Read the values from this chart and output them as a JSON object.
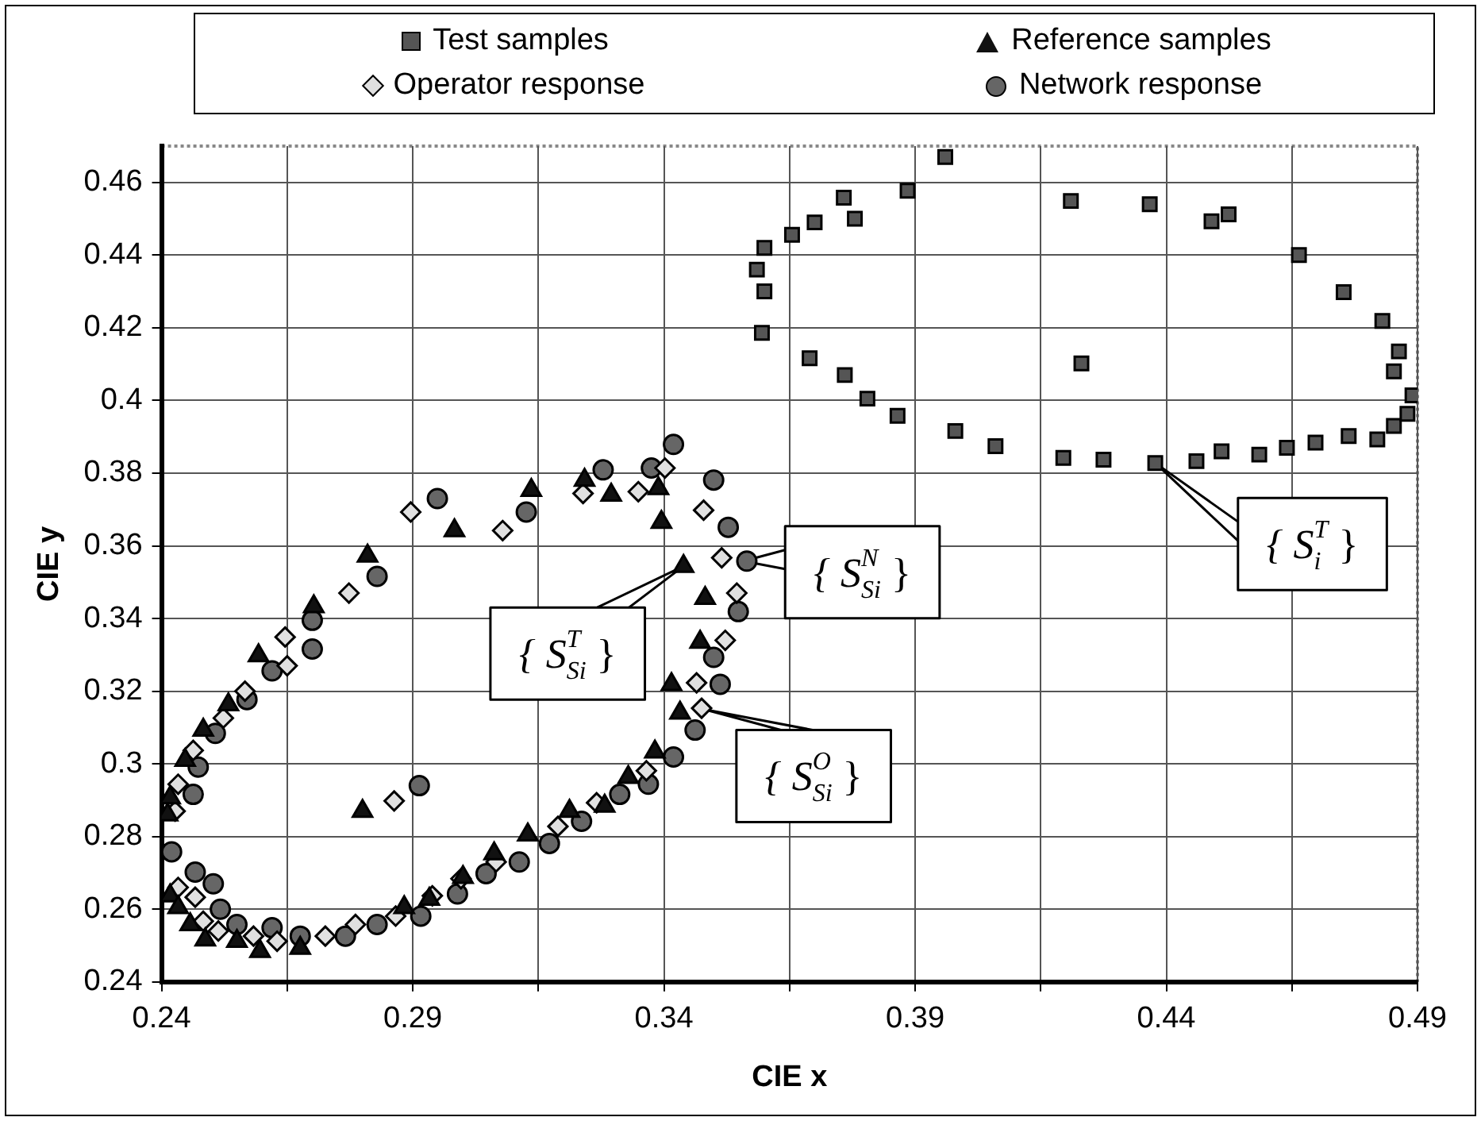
{
  "chart_data": {
    "type": "scatter",
    "xlabel": "CIE x",
    "ylabel": "CIE y",
    "xlim": [
      0.24,
      0.49
    ],
    "ylim": [
      0.24,
      0.47
    ],
    "xticks": [
      0.24,
      {
        "value": 0.265,
        "label": null
      },
      0.29,
      {
        "value": 0.315,
        "label": null
      },
      0.34,
      {
        "value": 0.365,
        "label": null
      },
      0.39,
      {
        "value": 0.415,
        "label": null
      },
      0.44,
      {
        "value": 0.465,
        "label": null
      },
      0.49
    ],
    "yticks": [
      0.24,
      0.26,
      0.28,
      0.3,
      0.32,
      0.34,
      0.36,
      0.38,
      0.4,
      0.42,
      0.44,
      0.46
    ],
    "grid": true,
    "legend": "top",
    "series": [
      {
        "name": "Test samples",
        "color": "#555555",
        "marker": "square",
        "x": [
          0.396,
          0.3885,
          0.3758,
          0.378,
          0.37,
          0.3655,
          0.36,
          0.3585,
          0.36,
          0.3595,
          0.369,
          0.376,
          0.3805,
          0.3865,
          0.398,
          0.406,
          0.4195,
          0.4275,
          0.4378,
          0.446,
          0.451,
          0.4585,
          0.464,
          0.4697,
          0.4763,
          0.482,
          0.4853,
          0.488,
          0.489,
          0.4853,
          0.4863,
          0.483,
          0.4753,
          0.4664,
          0.4524,
          0.449,
          0.4367,
          0.421,
          0.4231
        ],
        "values": [
          0.467,
          0.4577,
          0.4558,
          0.45,
          0.449,
          0.4456,
          0.442,
          0.436,
          0.43,
          0.4186,
          0.4116,
          0.407,
          0.4005,
          0.3958,
          0.3916,
          0.3874,
          0.3842,
          0.3837,
          0.3828,
          0.3833,
          0.386,
          0.3851,
          0.387,
          0.3884,
          0.3902,
          0.3893,
          0.393,
          0.3963,
          0.4014,
          0.408,
          0.4135,
          0.4219,
          0.4298,
          0.44,
          0.4512,
          0.4493,
          0.454,
          0.4549,
          0.4102
        ]
      },
      {
        "name": "Reference samples",
        "color": "#111111",
        "marker": "triangle",
        "x": [
          0.2412,
          0.2417,
          0.2447,
          0.2483,
          0.2533,
          0.2593,
          0.2703,
          0.281,
          0.2983,
          0.28,
          0.2417,
          0.2433,
          0.2457,
          0.2487,
          0.255,
          0.2596,
          0.2676,
          0.2883,
          0.2933,
          0.3,
          0.3136,
          0.3242,
          0.3295,
          0.3389,
          0.3395,
          0.3439,
          0.3482,
          0.3472,
          0.3415,
          0.3432,
          0.3382,
          0.3329,
          0.3282,
          0.3212,
          0.3129,
          0.3062
        ],
        "values": [
          0.286,
          0.2907,
          0.301,
          0.3093,
          0.3163,
          0.3298,
          0.3433,
          0.3572,
          0.3642,
          0.287,
          0.2637,
          0.2605,
          0.2558,
          0.2516,
          0.2512,
          0.2484,
          0.2493,
          0.2605,
          0.2628,
          0.2688,
          0.3753,
          0.3781,
          0.374,
          0.3758,
          0.3665,
          0.3544,
          0.3456,
          0.3335,
          0.3219,
          0.314,
          0.3033,
          0.2963,
          0.2884,
          0.287,
          0.2805,
          0.2753
        ]
      },
      {
        "name": "Operator response",
        "color": "#e0e0e0",
        "marker": "diamond",
        "x": [
          0.2427,
          0.2433,
          0.2463,
          0.2523,
          0.2566,
          0.265,
          0.2646,
          0.2773,
          0.2896,
          0.2863,
          0.2433,
          0.2467,
          0.2483,
          0.2513,
          0.2583,
          0.263,
          0.2726,
          0.2786,
          0.2866,
          0.2939,
          0.2996,
          0.3079,
          0.3239,
          0.3349,
          0.3402,
          0.3479,
          0.3515,
          0.3545,
          0.3522,
          0.3465,
          0.3475,
          0.3365,
          0.3266,
          0.3189,
          0.3066
        ],
        "values": [
          0.287,
          0.2944,
          0.3037,
          0.3126,
          0.32,
          0.327,
          0.3349,
          0.347,
          0.3693,
          0.2898,
          0.266,
          0.2633,
          0.2567,
          0.254,
          0.2526,
          0.2512,
          0.2526,
          0.2558,
          0.2581,
          0.2637,
          0.2684,
          0.3642,
          0.3744,
          0.3749,
          0.3814,
          0.3698,
          0.3567,
          0.347,
          0.334,
          0.3223,
          0.3153,
          0.2981,
          0.2893,
          0.2828,
          0.273
        ]
      },
      {
        "name": "Network response",
        "color": "#666666",
        "marker": "circle",
        "x": [
          0.242,
          0.2463,
          0.2473,
          0.2507,
          0.257,
          0.262,
          0.27,
          0.27,
          0.2829,
          0.2949,
          0.2913,
          0.2467,
          0.2503,
          0.2517,
          0.255,
          0.262,
          0.2676,
          0.2766,
          0.2829,
          0.2916,
          0.2989,
          0.3126,
          0.3279,
          0.3375,
          0.3419,
          0.3499,
          0.3528,
          0.3565,
          0.3548,
          0.3499,
          0.3512,
          0.3462,
          0.3419,
          0.3369,
          0.3312,
          0.3236,
          0.3172,
          0.3112,
          0.3046
        ],
        "values": [
          0.2758,
          0.2916,
          0.2991,
          0.3084,
          0.3177,
          0.3256,
          0.3316,
          0.3395,
          0.3516,
          0.373,
          0.294,
          0.2702,
          0.267,
          0.26,
          0.2558,
          0.2549,
          0.2526,
          0.2526,
          0.2558,
          0.2581,
          0.2642,
          0.3693,
          0.3809,
          0.3814,
          0.3879,
          0.3781,
          0.3651,
          0.3558,
          0.3419,
          0.3293,
          0.3219,
          0.3093,
          0.3019,
          0.2944,
          0.2916,
          0.2842,
          0.2781,
          0.273,
          0.2698
        ]
      }
    ],
    "annotations": [
      {
        "text": "{ S$_{i}$$^{T}$ }",
        "x": 0.4378,
        "y": 0.3828
      },
      {
        "text": "{ S$_{Si}$$^{T}$ }",
        "x": 0.3439,
        "y": 0.3544
      },
      {
        "text": "{ S$_{Si}$$^{N}$ }",
        "x": 0.3558,
        "y": 0.3558
      },
      {
        "text": "{ S$_{Si}$$^{O}$ }",
        "x": 0.348,
        "y": 0.315
      }
    ]
  }
}
